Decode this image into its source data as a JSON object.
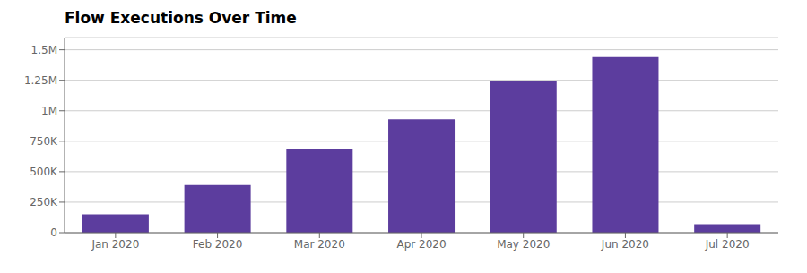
{
  "chart_data": {
    "type": "bar",
    "title": "Flow Executions Over Time",
    "categories": [
      "Jan 2020",
      "Feb 2020",
      "Mar 2020",
      "Apr 2020",
      "May 2020",
      "Jun 2020",
      "Jul 2020"
    ],
    "values": [
      150000,
      390000,
      685000,
      930000,
      1240000,
      1440000,
      70000
    ],
    "color": "#5c3d9e",
    "ylim": [
      0,
      1600000
    ],
    "yticks": [
      0,
      {
        "value": 250000,
        "label": "250K"
      },
      {
        "value": 500000,
        "label": "500K"
      },
      {
        "value": 750000,
        "label": "750K"
      },
      {
        "value": 1000000,
        "label": "1M"
      },
      {
        "value": 1250000,
        "label": "1.25M"
      },
      {
        "value": 1500000,
        "label": "1.5M"
      }
    ],
    "grid": true
  }
}
